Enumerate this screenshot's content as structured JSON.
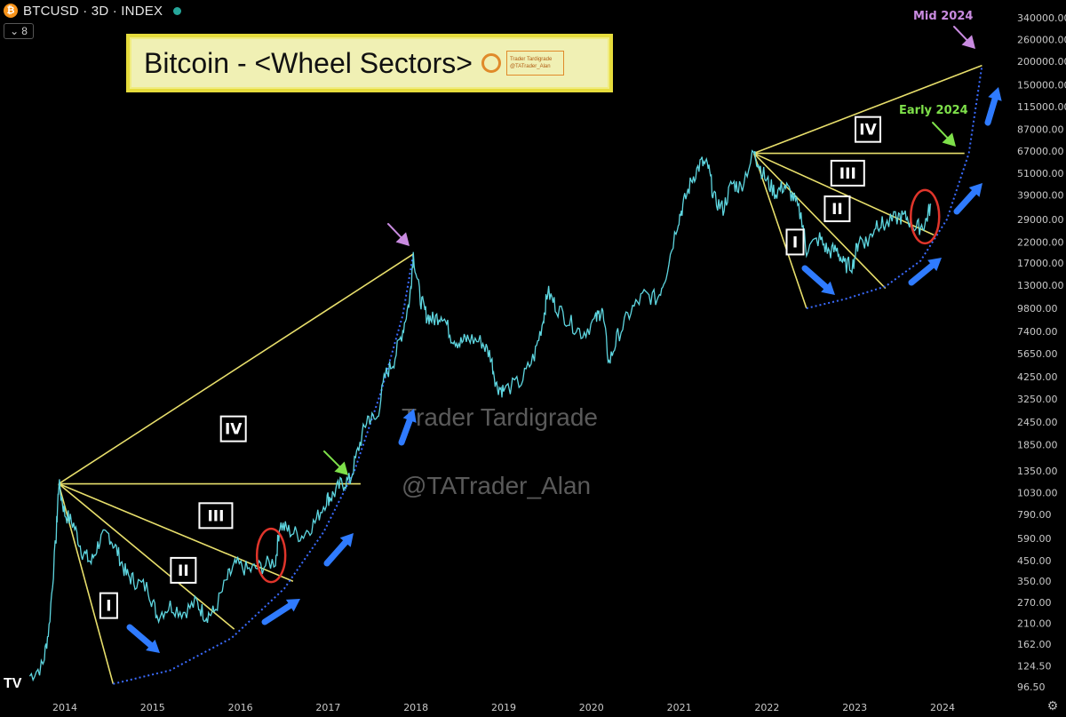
{
  "header": {
    "symbol": "BTCUSD · 3D · INDEX",
    "coin_glyph": "₿",
    "indicator_count": "8",
    "status_color": "#26a69a"
  },
  "title": {
    "text": "Bitcoin - <Wheel Sectors>",
    "mini_line1": "Trader Tardigrade",
    "mini_line2": "@TATrader_Alan"
  },
  "watermark": {
    "line1": "Trader Tardigrade",
    "line2": "@TATrader_Alan"
  },
  "annotations": {
    "mid_2024": "Mid 2024",
    "early_2024": "Early 2024",
    "sector_labels": [
      "I",
      "II",
      "III",
      "IV"
    ]
  },
  "icons": {
    "settings": "gear-icon",
    "tv_logo": "tradingview-logo"
  },
  "chart_data": {
    "type": "line",
    "scale": "log",
    "y_ticks": [
      "340000.00",
      "260000.00",
      "200000.00",
      "150000.00",
      "115000.00",
      "87000.00",
      "67000.00",
      "51000.00",
      "39000.00",
      "29000.00",
      "22000.00",
      "17000.00",
      "13000.00",
      "9800.00",
      "7400.00",
      "5650.00",
      "4250.00",
      "3250.00",
      "2450.00",
      "1850.00",
      "1350.00",
      "1030.00",
      "790.00",
      "590.00",
      "450.00",
      "350.00",
      "270.00",
      "210.00",
      "162.00",
      "124.50",
      "96.50"
    ],
    "x_ticks": [
      "2014",
      "2015",
      "2016",
      "2017",
      "2018",
      "2019",
      "2020",
      "2021",
      "2022",
      "2023",
      "2024"
    ],
    "price_path": [
      [
        2013.6,
        110
      ],
      [
        2013.75,
        125
      ],
      [
        2013.82,
        200
      ],
      [
        2013.9,
        600
      ],
      [
        2013.93,
        1150
      ],
      [
        2014.0,
        800
      ],
      [
        2014.1,
        700
      ],
      [
        2014.2,
        500
      ],
      [
        2014.3,
        440
      ],
      [
        2014.4,
        580
      ],
      [
        2014.5,
        620
      ],
      [
        2014.6,
        500
      ],
      [
        2014.7,
        380
      ],
      [
        2014.8,
        350
      ],
      [
        2014.95,
        320
      ],
      [
        2015.05,
        230
      ],
      [
        2015.2,
        260
      ],
      [
        2015.35,
        240
      ],
      [
        2015.5,
        270
      ],
      [
        2015.6,
        230
      ],
      [
        2015.7,
        240
      ],
      [
        2015.85,
        360
      ],
      [
        2015.95,
        430
      ],
      [
        2016.1,
        400
      ],
      [
        2016.25,
        420
      ],
      [
        2016.4,
        450
      ],
      [
        2016.45,
        700
      ],
      [
        2016.55,
        650
      ],
      [
        2016.7,
        610
      ],
      [
        2016.85,
        720
      ],
      [
        2016.98,
        950
      ],
      [
        2017.05,
        1000
      ],
      [
        2017.15,
        1150
      ],
      [
        2017.25,
        1200
      ],
      [
        2017.35,
        1800
      ],
      [
        2017.45,
        2600
      ],
      [
        2017.55,
        2500
      ],
      [
        2017.65,
        4300
      ],
      [
        2017.75,
        5200
      ],
      [
        2017.85,
        7500
      ],
      [
        2017.93,
        11000
      ],
      [
        2017.97,
        19000
      ],
      [
        2018.05,
        11000
      ],
      [
        2018.12,
        9000
      ],
      [
        2018.2,
        8500
      ],
      [
        2018.3,
        9200
      ],
      [
        2018.4,
        7000
      ],
      [
        2018.5,
        6400
      ],
      [
        2018.6,
        6800
      ],
      [
        2018.75,
        6500
      ],
      [
        2018.85,
        5500
      ],
      [
        2018.92,
        3800
      ],
      [
        2019.0,
        3600
      ],
      [
        2019.2,
        4000
      ],
      [
        2019.35,
        5500
      ],
      [
        2019.45,
        8500
      ],
      [
        2019.5,
        12000
      ],
      [
        2019.6,
        10000
      ],
      [
        2019.75,
        8300
      ],
      [
        2019.9,
        7200
      ],
      [
        2020.05,
        8500
      ],
      [
        2020.12,
        9800
      ],
      [
        2020.2,
        5000
      ],
      [
        2020.3,
        7000
      ],
      [
        2020.45,
        9500
      ],
      [
        2020.6,
        11500
      ],
      [
        2020.75,
        11000
      ],
      [
        2020.85,
        15000
      ],
      [
        2020.98,
        28000
      ],
      [
        2021.05,
        35000
      ],
      [
        2021.15,
        48000
      ],
      [
        2021.25,
        58000
      ],
      [
        2021.33,
        55000
      ],
      [
        2021.4,
        37000
      ],
      [
        2021.5,
        33000
      ],
      [
        2021.6,
        45000
      ],
      [
        2021.7,
        43000
      ],
      [
        2021.85,
        65000
      ],
      [
        2021.9,
        58000
      ],
      [
        2022.0,
        46000
      ],
      [
        2022.1,
        40000
      ],
      [
        2022.2,
        44000
      ],
      [
        2022.3,
        38000
      ],
      [
        2022.4,
        29000
      ],
      [
        2022.45,
        20000
      ],
      [
        2022.6,
        23000
      ],
      [
        2022.7,
        19500
      ],
      [
        2022.8,
        20000
      ],
      [
        2022.88,
        16500
      ],
      [
        2022.98,
        16800
      ],
      [
        2023.05,
        23000
      ],
      [
        2023.15,
        22000
      ],
      [
        2023.25,
        28000
      ],
      [
        2023.35,
        27000
      ],
      [
        2023.5,
        30000
      ],
      [
        2023.6,
        29500
      ],
      [
        2023.7,
        26000
      ],
      [
        2023.8,
        27500
      ],
      [
        2023.87,
        35000
      ]
    ],
    "fan_lines": [
      {
        "from": [
          2013.93,
          1150
        ],
        "to": [
          2014.55,
          100
        ]
      },
      {
        "from": [
          2013.93,
          1150
        ],
        "to": [
          2015.93,
          195
        ]
      },
      {
        "from": [
          2013.93,
          1150
        ],
        "to": [
          2016.6,
          350
        ]
      },
      {
        "from": [
          2013.93,
          1150
        ],
        "to": [
          2017.37,
          1150
        ]
      },
      {
        "from": [
          2013.93,
          1150
        ],
        "to": [
          2017.97,
          19000
        ]
      },
      {
        "from": [
          2021.85,
          65000
        ],
        "to": [
          2022.45,
          9800
        ]
      },
      {
        "from": [
          2021.85,
          65000
        ],
        "to": [
          2023.35,
          12500
        ]
      },
      {
        "from": [
          2021.85,
          65000
        ],
        "to": [
          2023.9,
          24000
        ]
      },
      {
        "from": [
          2021.85,
          65000
        ],
        "to": [
          2024.25,
          65000
        ]
      },
      {
        "from": [
          2021.85,
          65000
        ],
        "to": [
          2024.45,
          190000
        ]
      }
    ],
    "arcs": [
      {
        "points": [
          [
            2014.55,
            100
          ],
          [
            2015.2,
            118
          ],
          [
            2015.9,
            175
          ],
          [
            2016.5,
            320
          ],
          [
            2016.95,
            640
          ],
          [
            2017.3,
            1350
          ],
          [
            2017.6,
            3500
          ],
          [
            2017.85,
            9000
          ],
          [
            2017.97,
            19000
          ]
        ]
      },
      {
        "points": [
          [
            2022.45,
            9800
          ],
          [
            2022.9,
            11000
          ],
          [
            2023.35,
            12800
          ],
          [
            2023.75,
            17500
          ],
          [
            2024.05,
            29000
          ],
          [
            2024.3,
            65000
          ],
          [
            2024.45,
            190000
          ]
        ]
      }
    ],
    "sector_positions": [
      {
        "label": "I",
        "at": [
          2014.5,
          260
        ]
      },
      {
        "label": "II",
        "at": [
          2015.35,
          400
        ]
      },
      {
        "label": "III",
        "at": [
          2015.72,
          780
        ]
      },
      {
        "label": "IV",
        "at": [
          2015.92,
          2250
        ]
      },
      {
        "label": "I",
        "at": [
          2022.32,
          22000
        ]
      },
      {
        "label": "II",
        "at": [
          2022.8,
          33000
        ]
      },
      {
        "label": "III",
        "at": [
          2022.92,
          51000
        ]
      },
      {
        "label": "IV",
        "at": [
          2023.15,
          87000
        ]
      }
    ],
    "circles": [
      [
        2016.35,
        480
      ],
      [
        2023.8,
        30000
      ]
    ],
    "colors": {
      "price": "#5ed6e0",
      "fan": "#e7de6b",
      "arc": "#3a6bff",
      "arrow": "#2f7bff",
      "circle": "#e0352b",
      "mid": "#c98be0",
      "early": "#7ee04a"
    }
  }
}
